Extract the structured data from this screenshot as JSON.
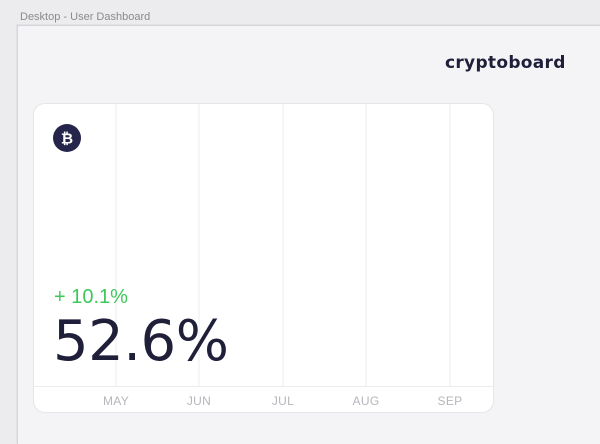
{
  "window": {
    "title": "Desktop - User Dashboard"
  },
  "header": {
    "brand": "cryptoboard"
  },
  "card": {
    "coin_icon": "bitcoin-icon",
    "change": "+ 10.1%",
    "value": "52.6%",
    "months": [
      "MAY",
      "JUN",
      "JUL",
      "AUG",
      "SEP"
    ]
  },
  "colors": {
    "background": "#f4f4f6",
    "card": "#ffffff",
    "text_dark": "#1f1f3a",
    "positive": "#3ec85a",
    "muted": "#b6b6bd",
    "coin_badge": "#25244a"
  }
}
